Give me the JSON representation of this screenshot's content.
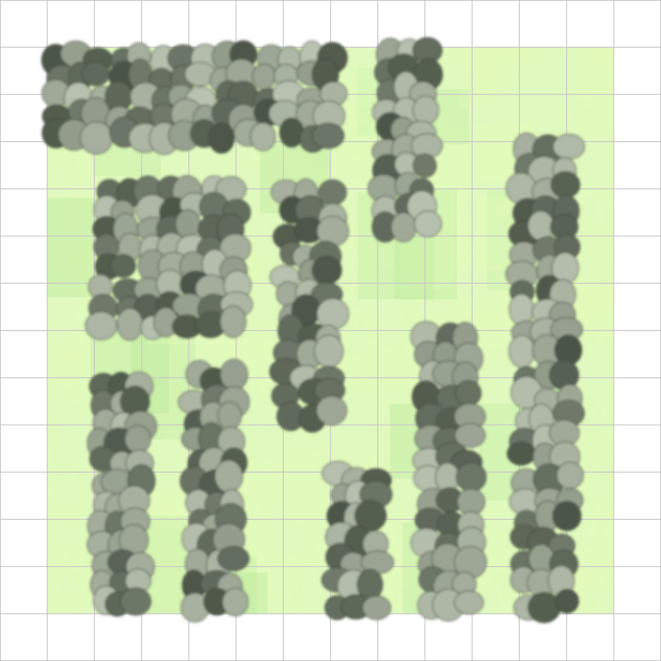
{
  "map": {
    "grid_columns": 14,
    "grid_rows": 14,
    "colors": {
      "background": "#ffffff",
      "grid_line": "#c8c8c8",
      "grass_light": "#e4fbb8",
      "grass_mid": "#c6f0a0",
      "grass_dark": "#b2e694",
      "bush_light": "#b9c2b0",
      "bush_dark": "#4a5446",
      "bush_outline": "#3a4238"
    },
    "tiles": {
      "ground": "grass-terrain",
      "obstacle": "shrub-cluster"
    },
    "grass_area": {
      "col": 1,
      "row": 1,
      "cols": 12,
      "rows": 12
    },
    "shrub_clusters": [
      {
        "name": "shrub-cluster-top-left",
        "col": 1,
        "row": 1,
        "cols": 6.2,
        "rows": 2.1
      },
      {
        "name": "shrub-cluster-top-center",
        "col": 8,
        "row": 0.9,
        "cols": 1.2,
        "rows": 4.1
      },
      {
        "name": "shrub-cluster-left-middle",
        "col": 2,
        "row": 3.8,
        "cols": 3.2,
        "rows": 3.3
      },
      {
        "name": "shrub-cluster-center-middle",
        "col": 5.9,
        "row": 3.9,
        "cols": 1.3,
        "rows": 5.1
      },
      {
        "name": "shrub-cluster-right-tall",
        "col": 10.9,
        "row": 2.9,
        "cols": 1.3,
        "rows": 10.1
      },
      {
        "name": "shrub-cluster-bottom-left",
        "col": 2,
        "row": 7.9,
        "cols": 1.1,
        "rows": 5.1
      },
      {
        "name": "shrub-cluster-bottom-left-2",
        "col": 4,
        "row": 7.8,
        "cols": 1.1,
        "rows": 5.2
      },
      {
        "name": "shrub-cluster-bottom-center",
        "col": 7,
        "row": 9.9,
        "cols": 1.1,
        "rows": 3.1
      },
      {
        "name": "shrub-cluster-bottom-right",
        "col": 8.9,
        "row": 6.9,
        "cols": 1.2,
        "rows": 6.1
      }
    ]
  }
}
